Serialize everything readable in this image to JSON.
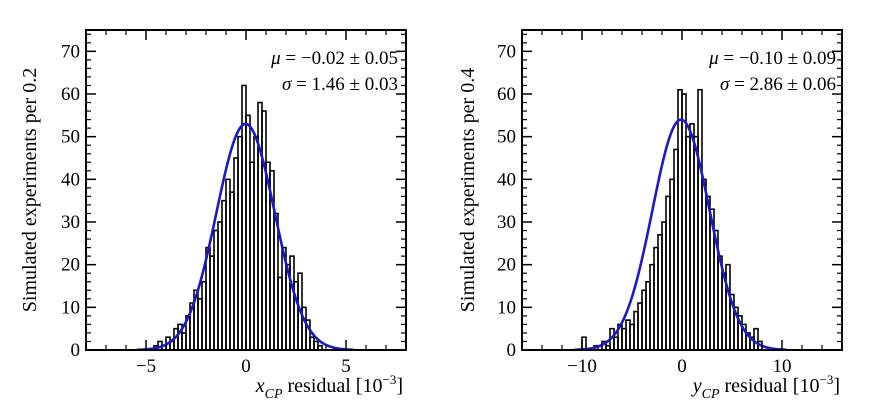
{
  "chart_data": [
    {
      "type": "histogram",
      "ylabel": "Simulated experiments per 0.2",
      "xlabel": {
        "var": "x",
        "sub": "CP",
        "rest": " residual [10",
        "exp": "−3",
        "close": "]"
      },
      "xlim": [
        -8,
        8
      ],
      "ylim": [
        0,
        75
      ],
      "xticks": [
        -5,
        0,
        5
      ],
      "xtick_labels": [
        "−5",
        "0",
        "5"
      ],
      "yticks": [
        0,
        10,
        20,
        30,
        40,
        50,
        60,
        70
      ],
      "ytick_labels": [
        "0",
        "10",
        "20",
        "30",
        "40",
        "50",
        "60",
        "70"
      ],
      "bin_width": 0.2,
      "fit": {
        "type": "gaussian",
        "mean": -0.02,
        "sigma": 1.46,
        "amplitude": 53,
        "color": "#1a1acc"
      },
      "stats": [
        {
          "sym": "μ",
          "text": " = −0.02 ± 0.05"
        },
        {
          "sym": "σ",
          "text": " = 1.46 ± 0.03"
        }
      ],
      "bins": [
        [
          -5.0,
          0
        ],
        [
          -4.6,
          1
        ],
        [
          -4.4,
          2
        ],
        [
          -4.2,
          1
        ],
        [
          -4.0,
          3
        ],
        [
          -3.8,
          2
        ],
        [
          -3.6,
          5
        ],
        [
          -3.4,
          6
        ],
        [
          -3.2,
          4
        ],
        [
          -3.0,
          8
        ],
        [
          -2.8,
          11
        ],
        [
          -2.6,
          14
        ],
        [
          -2.4,
          12
        ],
        [
          -2.2,
          16
        ],
        [
          -2.0,
          24
        ],
        [
          -1.8,
          22
        ],
        [
          -1.6,
          28
        ],
        [
          -1.4,
          30
        ],
        [
          -1.2,
          35
        ],
        [
          -1.0,
          40
        ],
        [
          -0.8,
          37
        ],
        [
          -0.6,
          45
        ],
        [
          -0.4,
          50
        ],
        [
          -0.2,
          62
        ],
        [
          0.0,
          55
        ],
        [
          0.2,
          44
        ],
        [
          0.4,
          50
        ],
        [
          0.6,
          58
        ],
        [
          0.8,
          56
        ],
        [
          1.0,
          44
        ],
        [
          1.2,
          42
        ],
        [
          1.4,
          32
        ],
        [
          1.6,
          17
        ],
        [
          1.8,
          24
        ],
        [
          2.0,
          20
        ],
        [
          2.2,
          22
        ],
        [
          2.4,
          16
        ],
        [
          2.6,
          18
        ],
        [
          2.8,
          10
        ],
        [
          3.0,
          7
        ],
        [
          3.2,
          3
        ],
        [
          3.4,
          2
        ],
        [
          3.6,
          1
        ],
        [
          3.8,
          0
        ]
      ]
    },
    {
      "type": "histogram",
      "ylabel": "Simulated experiments per 0.4",
      "xlabel": {
        "var": "y",
        "sub": "CP",
        "rest": " residual [10",
        "exp": "−3",
        "close": "]"
      },
      "xlim": [
        -16,
        16
      ],
      "ylim": [
        0,
        75
      ],
      "xticks": [
        -10,
        0,
        10
      ],
      "xtick_labels": [
        "−10",
        "0",
        "10"
      ],
      "yticks": [
        0,
        10,
        20,
        30,
        40,
        50,
        60,
        70
      ],
      "ytick_labels": [
        "0",
        "10",
        "20",
        "30",
        "40",
        "50",
        "60",
        "70"
      ],
      "bin_width": 0.4,
      "fit": {
        "type": "gaussian",
        "mean": -0.1,
        "sigma": 2.86,
        "amplitude": 54,
        "color": "#1a1acc"
      },
      "stats": [
        {
          "sym": "μ",
          "text": " = −0.10 ± 0.09"
        },
        {
          "sym": "σ",
          "text": " = 2.86 ± 0.06"
        }
      ],
      "bins": [
        [
          -10.4,
          0
        ],
        [
          -10.0,
          3
        ],
        [
          -9.6,
          0
        ],
        [
          -9.2,
          0
        ],
        [
          -8.8,
          1
        ],
        [
          -8.4,
          0
        ],
        [
          -8.0,
          2
        ],
        [
          -7.6,
          1
        ],
        [
          -7.2,
          5
        ],
        [
          -6.8,
          3
        ],
        [
          -6.4,
          6
        ],
        [
          -6.0,
          5
        ],
        [
          -5.6,
          7
        ],
        [
          -5.2,
          6
        ],
        [
          -4.8,
          9
        ],
        [
          -4.4,
          11
        ],
        [
          -4.0,
          14
        ],
        [
          -3.6,
          16
        ],
        [
          -3.2,
          20
        ],
        [
          -2.8,
          24
        ],
        [
          -2.4,
          27
        ],
        [
          -2.0,
          30
        ],
        [
          -1.6,
          36
        ],
        [
          -1.2,
          40
        ],
        [
          -0.8,
          47
        ],
        [
          -0.4,
          61
        ],
        [
          0.0,
          60
        ],
        [
          0.4,
          50
        ],
        [
          0.8,
          53
        ],
        [
          1.2,
          50
        ],
        [
          1.6,
          61
        ],
        [
          2.0,
          40
        ],
        [
          2.4,
          36
        ],
        [
          2.8,
          33
        ],
        [
          3.2,
          28
        ],
        [
          3.6,
          22
        ],
        [
          4.0,
          18
        ],
        [
          4.4,
          20
        ],
        [
          4.8,
          13
        ],
        [
          5.2,
          10
        ],
        [
          5.6,
          8
        ],
        [
          6.0,
          6
        ],
        [
          6.4,
          4
        ],
        [
          6.8,
          3
        ],
        [
          7.2,
          5
        ],
        [
          7.6,
          2
        ],
        [
          8.0,
          0
        ]
      ]
    }
  ]
}
